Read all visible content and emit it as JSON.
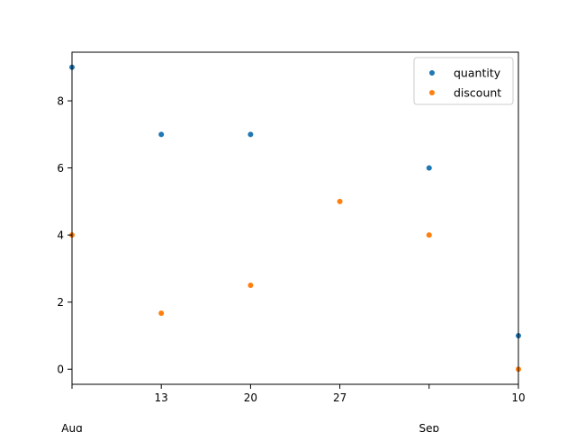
{
  "chart_data": {
    "type": "scatter",
    "x": [
      "2024-08-06",
      "2024-08-13",
      "2024-08-20",
      "2024-08-27",
      "2024-09-03",
      "2024-09-10"
    ],
    "series": [
      {
        "name": "quantity",
        "color": "#1f77b4",
        "values": [
          9,
          7,
          7,
          null,
          6,
          1
        ]
      },
      {
        "name": "discount",
        "color": "#ff7f0e",
        "values": [
          4,
          1.67,
          2.5,
          5,
          4,
          0
        ]
      }
    ],
    "xlim": [
      "2024-08-06",
      "2024-09-10"
    ],
    "ylim": [
      -0.45,
      9.45
    ],
    "x_ticks": [
      {
        "date": "2024-08-06",
        "label": ""
      },
      {
        "date": "2024-08-13",
        "label": "13"
      },
      {
        "date": "2024-08-20",
        "label": "20"
      },
      {
        "date": "2024-08-27",
        "label": "27"
      },
      {
        "date": "2024-09-03",
        "label": ""
      },
      {
        "date": "2024-09-10",
        "label": "10"
      }
    ],
    "x_month_labels": [
      {
        "date": "2024-08-06",
        "label": "Aug"
      },
      {
        "date": "2024-09-03",
        "label": "Sep"
      }
    ],
    "y_ticks": [
      0,
      2,
      4,
      6,
      8
    ],
    "grid": false,
    "legend": "top-right",
    "title": "",
    "xlabel": "",
    "ylabel": ""
  }
}
